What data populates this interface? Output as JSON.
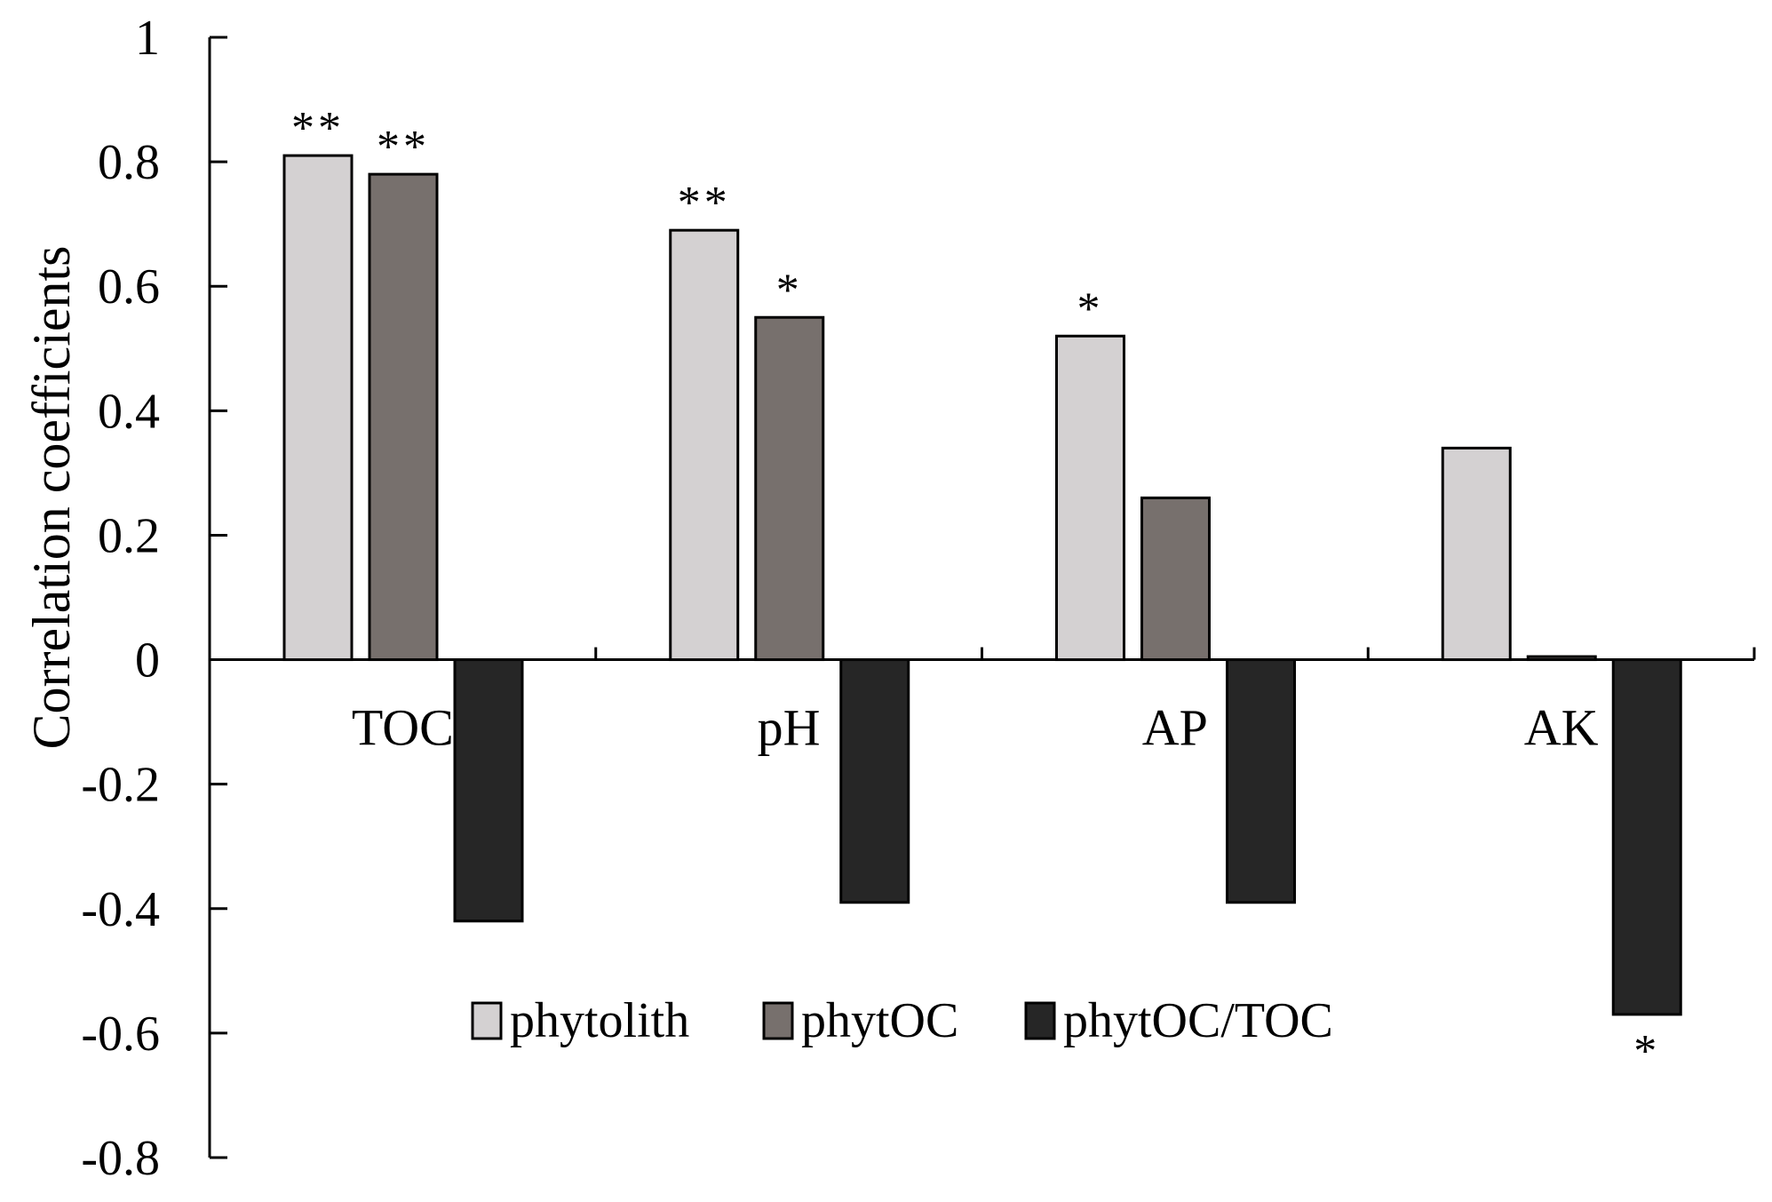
{
  "chart_data": {
    "type": "bar",
    "title": "",
    "xlabel": "",
    "ylabel": "Correlation coefficients",
    "ylim": [
      -0.8,
      1
    ],
    "yticks": [
      1,
      0.8,
      0.6,
      0.4,
      0.2,
      0,
      -0.2,
      -0.4,
      -0.6,
      -0.8
    ],
    "ytick_labels": [
      "1",
      "0.8",
      "0.6",
      "0.4",
      "0.2",
      "0",
      "-0.2",
      "-0.4",
      "-0.6",
      "-0.8"
    ],
    "categories": [
      "TOC",
      "pH",
      "AP",
      "AK"
    ],
    "grid": false,
    "legend_position": "lower-center",
    "series": [
      {
        "name": "phytolith",
        "color": "#d4d1d2",
        "values": [
          0.81,
          0.69,
          0.52,
          0.34
        ],
        "significance": [
          "**",
          "**",
          "*",
          ""
        ]
      },
      {
        "name": "phytOC",
        "color": "#77706d",
        "values": [
          0.78,
          0.55,
          0.26,
          0.005
        ],
        "significance": [
          "**",
          "*",
          "",
          ""
        ]
      },
      {
        "name": "phytOC/TOC",
        "color": "#262626",
        "values": [
          -0.42,
          -0.39,
          -0.39,
          -0.57
        ],
        "significance": [
          "",
          "",
          "",
          "*"
        ]
      }
    ]
  }
}
